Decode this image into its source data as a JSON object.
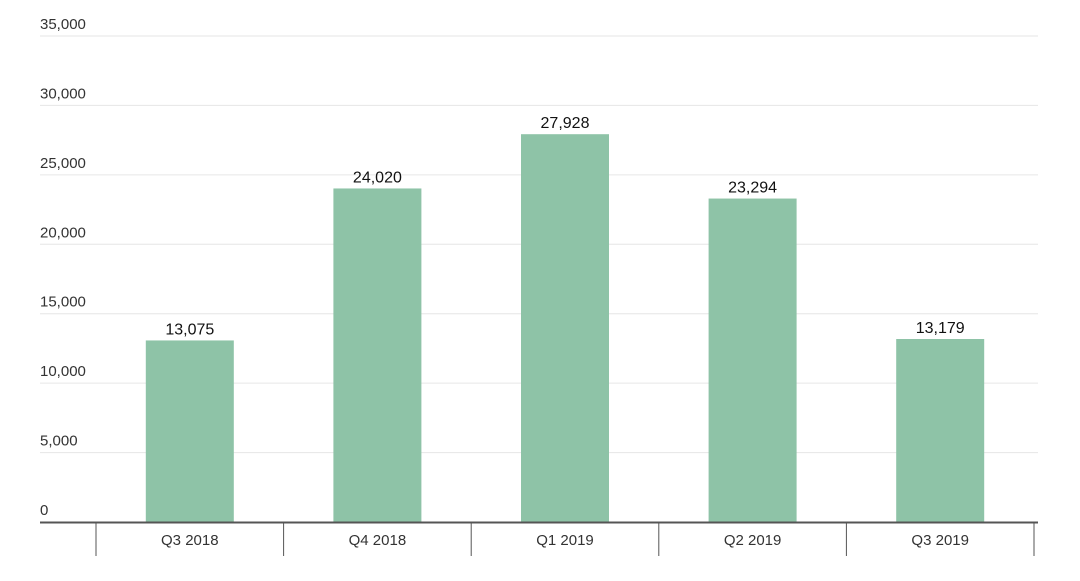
{
  "chart_data": {
    "type": "bar",
    "title": "",
    "xlabel": "",
    "ylabel": "",
    "categories": [
      "Q3 2018",
      "Q4 2018",
      "Q1 2019",
      "Q2 2019",
      "Q3 2019"
    ],
    "values": [
      13075,
      24020,
      27928,
      23294,
      13179
    ],
    "value_labels": [
      "13,075",
      "24,020",
      "27,928",
      "23,294",
      "13,179"
    ],
    "ylim": [
      0,
      35000
    ],
    "yticks": [
      0,
      5000,
      10000,
      15000,
      20000,
      25000,
      30000,
      35000
    ],
    "ytick_labels": [
      "0",
      "5,000",
      "10,000",
      "15,000",
      "20,000",
      "25,000",
      "30,000",
      "35,000"
    ],
    "grid": true,
    "legend": "none",
    "colors": {
      "bar": "#8ec3a7",
      "grid": "#e6e6e6",
      "axis": "#555555",
      "text": "#333333",
      "label": "#111111"
    }
  }
}
